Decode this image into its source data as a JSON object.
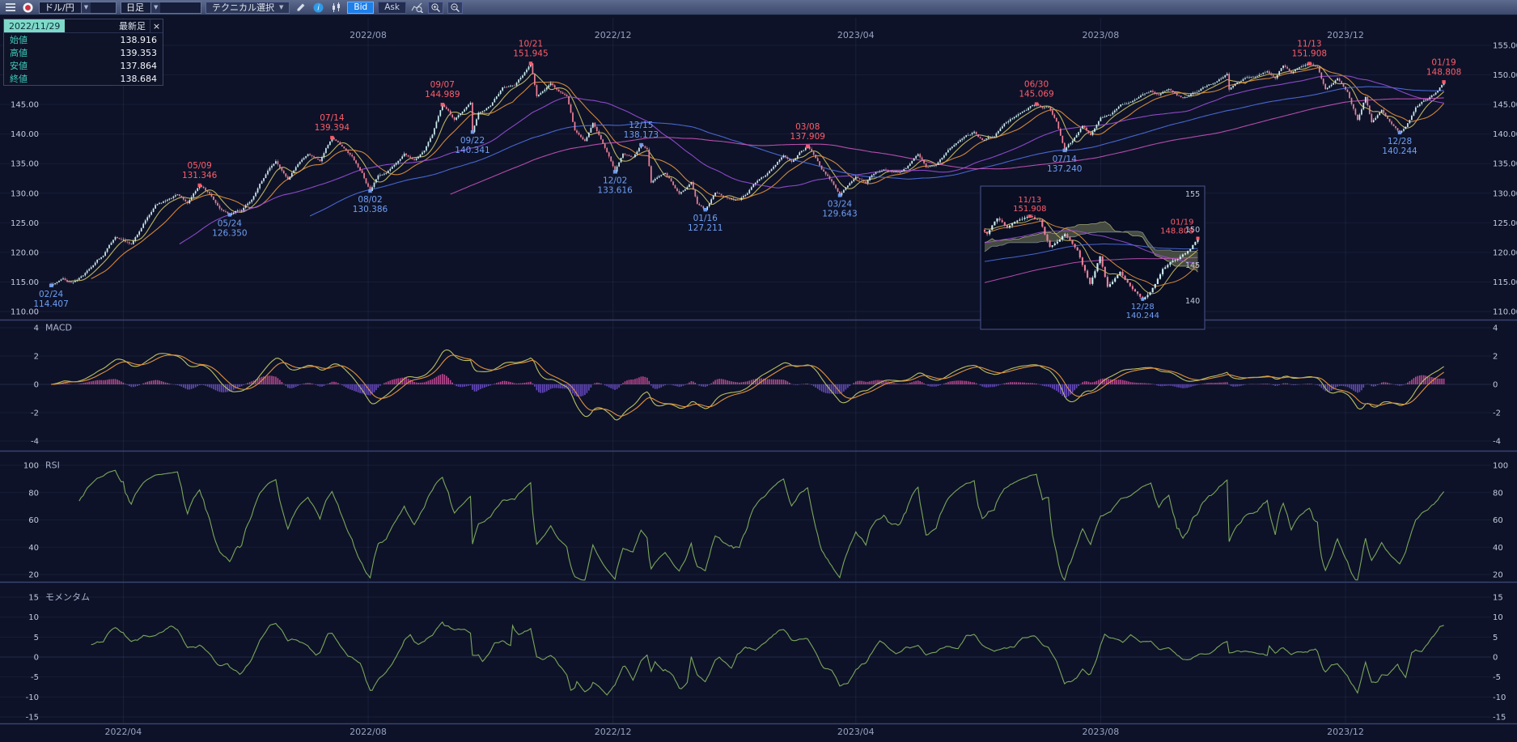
{
  "toolbar": {
    "pair_label": "ドル/円",
    "timeframe_label": "日足",
    "technical_label": "テクニカル選択",
    "bid_label": "Bid",
    "ask_label": "Ask"
  },
  "info_panel": {
    "date": "2022/11/29",
    "latest_label": "最新足",
    "close_label": "×",
    "fields": [
      {
        "label": "始値",
        "value": "138.916"
      },
      {
        "label": "高値",
        "value": "139.353"
      },
      {
        "label": "安値",
        "value": "137.864"
      },
      {
        "label": "終値",
        "value": "138.684"
      }
    ]
  },
  "chart_data": {
    "type": "candlestick",
    "symbol": "ドル/円",
    "interval": "日足",
    "start_date": "2022/02/24",
    "days": 695,
    "price_axis": {
      "min": 110,
      "max": 155,
      "step": 5
    },
    "x_ticks": [
      {
        "label": "2022/04",
        "day": 36,
        "top": false
      },
      {
        "label": "2022/08",
        "day": 158,
        "top": true
      },
      {
        "label": "2022/12",
        "day": 280,
        "top": true
      },
      {
        "label": "2023/04",
        "day": 401,
        "top": true
      },
      {
        "label": "2023/08",
        "day": 523,
        "top": true
      },
      {
        "label": "2023/12",
        "day": 645,
        "top": true
      }
    ],
    "annotations": [
      {
        "date": "02/24",
        "price": 114.407,
        "day": 0,
        "side": "below",
        "color": "blue"
      },
      {
        "date": "05/09",
        "price": 131.346,
        "day": 74,
        "side": "above",
        "color": "red"
      },
      {
        "date": "05/24",
        "price": 126.35,
        "day": 89,
        "side": "below",
        "color": "blue"
      },
      {
        "date": "07/14",
        "price": 139.394,
        "day": 140,
        "side": "above",
        "color": "red"
      },
      {
        "date": "08/02",
        "price": 130.386,
        "day": 159,
        "side": "below",
        "color": "blue"
      },
      {
        "date": "09/07",
        "price": 144.989,
        "day": 195,
        "side": "above",
        "color": "red"
      },
      {
        "date": "09/22",
        "price": 140.341,
        "day": 210,
        "side": "below",
        "color": "blue"
      },
      {
        "date": "10/21",
        "price": 151.945,
        "day": 239,
        "side": "above",
        "color": "red"
      },
      {
        "date": "12/02",
        "price": 133.616,
        "day": 281,
        "side": "below",
        "color": "blue"
      },
      {
        "date": "12/15",
        "price": 138.173,
        "day": 294,
        "side": "above",
        "color": "blue"
      },
      {
        "date": "01/16",
        "price": 127.211,
        "day": 326,
        "side": "below",
        "color": "blue"
      },
      {
        "date": "03/08",
        "price": 137.909,
        "day": 377,
        "side": "above",
        "color": "red"
      },
      {
        "date": "03/24",
        "price": 129.643,
        "day": 393,
        "side": "below",
        "color": "blue"
      },
      {
        "date": "06/30",
        "price": 145.069,
        "day": 491,
        "side": "above",
        "color": "red"
      },
      {
        "date": "07/14",
        "price": 137.24,
        "day": 505,
        "side": "below",
        "color": "blue"
      },
      {
        "date": "11/13",
        "price": 151.908,
        "day": 627,
        "side": "above",
        "color": "red"
      },
      {
        "date": "12/28",
        "price": 140.244,
        "day": 672,
        "side": "below",
        "color": "blue"
      },
      {
        "date": "01/19",
        "price": 148.808,
        "day": 694,
        "side": "above",
        "color": "red"
      }
    ],
    "price_waypoints": [
      [
        0,
        114.407
      ],
      [
        6,
        115.6
      ],
      [
        10,
        114.9
      ],
      [
        16,
        116.1
      ],
      [
        20,
        117.5
      ],
      [
        26,
        119.4
      ],
      [
        32,
        122.6
      ],
      [
        40,
        121.4
      ],
      [
        47,
        125.4
      ],
      [
        52,
        128.0
      ],
      [
        58,
        128.9
      ],
      [
        63,
        129.8
      ],
      [
        68,
        128.3
      ],
      [
        74,
        131.346
      ],
      [
        79,
        129.9
      ],
      [
        84,
        127.4
      ],
      [
        89,
        126.35
      ],
      [
        95,
        127.1
      ],
      [
        100,
        128.9
      ],
      [
        104,
        131.6
      ],
      [
        109,
        134.3
      ],
      [
        112,
        135.4
      ],
      [
        118,
        132.3
      ],
      [
        123,
        134.9
      ],
      [
        128,
        136.6
      ],
      [
        134,
        135.4
      ],
      [
        140,
        139.394
      ],
      [
        145,
        137.9
      ],
      [
        150,
        136.2
      ],
      [
        155,
        133.4
      ],
      [
        159,
        130.386
      ],
      [
        163,
        133.0
      ],
      [
        167,
        133.4
      ],
      [
        172,
        135.1
      ],
      [
        176,
        136.7
      ],
      [
        181,
        135.6
      ],
      [
        186,
        137.2
      ],
      [
        190,
        139.9
      ],
      [
        195,
        144.989
      ],
      [
        201,
        142.4
      ],
      [
        205,
        143.8
      ],
      [
        209,
        145.3
      ],
      [
        210,
        140.341
      ],
      [
        213,
        143.6
      ],
      [
        219,
        144.8
      ],
      [
        225,
        147.9
      ],
      [
        231,
        148.2
      ],
      [
        235,
        149.9
      ],
      [
        239,
        151.945
      ],
      [
        242,
        146.4
      ],
      [
        246,
        147.5
      ],
      [
        249,
        148.6
      ],
      [
        253,
        147.2
      ],
      [
        257,
        146.4
      ],
      [
        261,
        140.6
      ],
      [
        266,
        138.8
      ],
      [
        270,
        141.9
      ],
      [
        274,
        139.1
      ],
      [
        278,
        136.2
      ],
      [
        281,
        133.616
      ],
      [
        285,
        136.7
      ],
      [
        290,
        136.1
      ],
      [
        294,
        138.173
      ],
      [
        297,
        137.4
      ],
      [
        299,
        131.8
      ],
      [
        303,
        132.9
      ],
      [
        306,
        133.4
      ],
      [
        313,
        129.9
      ],
      [
        319,
        131.9
      ],
      [
        322,
        128.2
      ],
      [
        326,
        127.211
      ],
      [
        331,
        130.1
      ],
      [
        337,
        129.2
      ],
      [
        343,
        128.9
      ],
      [
        350,
        131.5
      ],
      [
        356,
        133.0
      ],
      [
        361,
        134.8
      ],
      [
        365,
        136.4
      ],
      [
        369,
        135.3
      ],
      [
        373,
        136.9
      ],
      [
        377,
        137.909
      ],
      [
        380,
        136.5
      ],
      [
        384,
        134.0
      ],
      [
        389,
        132.0
      ],
      [
        393,
        129.643
      ],
      [
        397,
        131.3
      ],
      [
        401,
        132.8
      ],
      [
        406,
        131.7
      ],
      [
        410,
        133.3
      ],
      [
        415,
        134.0
      ],
      [
        420,
        133.6
      ],
      [
        426,
        134.2
      ],
      [
        432,
        136.6
      ],
      [
        436,
        134.4
      ],
      [
        441,
        134.8
      ],
      [
        447,
        137.3
      ],
      [
        452,
        138.7
      ],
      [
        456,
        139.8
      ],
      [
        460,
        140.4
      ],
      [
        464,
        139.0
      ],
      [
        470,
        139.6
      ],
      [
        475,
        141.8
      ],
      [
        480,
        142.9
      ],
      [
        484,
        143.8
      ],
      [
        488,
        144.7
      ],
      [
        491,
        145.069
      ],
      [
        494,
        144.4
      ],
      [
        497,
        144.6
      ],
      [
        501,
        142.1
      ],
      [
        505,
        137.24
      ],
      [
        509,
        138.9
      ],
      [
        514,
        141.4
      ],
      [
        518,
        139.8
      ],
      [
        523,
        142.8
      ],
      [
        528,
        143.3
      ],
      [
        533,
        145.0
      ],
      [
        538,
        145.4
      ],
      [
        543,
        146.5
      ],
      [
        548,
        147.3
      ],
      [
        552,
        146.6
      ],
      [
        557,
        147.6
      ],
      [
        564,
        146.1
      ],
      [
        569,
        147.0
      ],
      [
        575,
        148.0
      ],
      [
        580,
        148.7
      ],
      [
        584,
        149.6
      ],
      [
        586,
        150.2
      ],
      [
        587,
        147.5
      ],
      [
        591,
        148.7
      ],
      [
        596,
        149.6
      ],
      [
        601,
        149.8
      ],
      [
        606,
        150.6
      ],
      [
        610,
        149.4
      ],
      [
        614,
        151.6
      ],
      [
        618,
        150.3
      ],
      [
        622,
        151.3
      ],
      [
        627,
        151.908
      ],
      [
        631,
        151.4
      ],
      [
        635,
        147.6
      ],
      [
        641,
        149.4
      ],
      [
        646,
        147.1
      ],
      [
        651,
        142.4
      ],
      [
        655,
        146.3
      ],
      [
        658,
        142.0
      ],
      [
        663,
        144.1
      ],
      [
        667,
        142.1
      ],
      [
        672,
        140.244
      ],
      [
        675,
        141.2
      ],
      [
        680,
        144.5
      ],
      [
        686,
        145.9
      ],
      [
        691,
        147.3
      ],
      [
        694,
        148.808
      ]
    ],
    "moving_averages": [
      {
        "period": 9,
        "color": "#cfc464"
      },
      {
        "period": 21,
        "color": "#e8923c"
      },
      {
        "period": 65,
        "color": "#9a4fd8"
      },
      {
        "period": 130,
        "color": "#4f6fe0"
      },
      {
        "period": 200,
        "color": "#c653b8"
      }
    ],
    "indicators": {
      "macd": {
        "title": "MACD",
        "ticks": [
          4,
          2,
          0,
          -2,
          -4
        ],
        "fast": 12,
        "slow": 26,
        "signal": 9
      },
      "rsi": {
        "title": "RSI",
        "ticks": [
          100,
          80,
          60,
          40,
          20
        ],
        "period": 14
      },
      "momentum": {
        "title": "モメンタム",
        "ticks": [
          15,
          10,
          5,
          0,
          -5,
          -10,
          -15
        ],
        "period": 20
      }
    },
    "inset": {
      "from_day": 609,
      "axis_labels": [
        [
          155,
          "155"
        ],
        [
          150,
          "150"
        ],
        [
          145,
          "145"
        ],
        [
          140,
          "140"
        ]
      ],
      "annotations": [
        {
          "date": "11/13",
          "price": 151.908,
          "day": 627,
          "side": "above",
          "color": "red",
          "anchor": "middle"
        },
        {
          "date": "01/19",
          "price": 148.808,
          "day": 694,
          "side": "above",
          "color": "red",
          "anchor": "end"
        },
        {
          "date": "12/28",
          "price": 140.244,
          "day": 672,
          "side": "below",
          "color": "blue",
          "anchor": "middle"
        }
      ]
    },
    "colors": {
      "up": "#cdeef0",
      "down": "#ef8098",
      "axis_text": "#c2cbdd",
      "tick_text": "#97a3c0",
      "annotation_red": "#ff5d6b",
      "annotation_blue": "#6f9ff5",
      "macd_line": "#b9bf62",
      "macd_signal": "#e2923e",
      "hist_pos": "#e754a8",
      "hist_neg": "#7e57e8",
      "rsi_line": "#7aa65c",
      "momentum_line": "#7aa65c",
      "cloud": "#9aa06b",
      "title_text": "#aab4cc"
    }
  }
}
